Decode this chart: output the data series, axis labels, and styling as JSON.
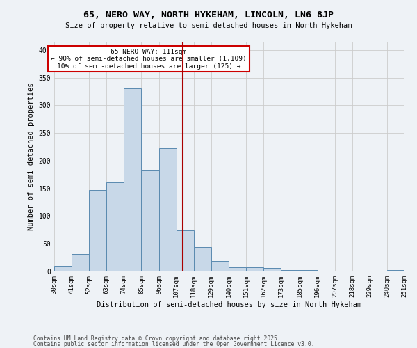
{
  "title": "65, NERO WAY, NORTH HYKEHAM, LINCOLN, LN6 8JP",
  "subtitle": "Size of property relative to semi-detached houses in North Hykeham",
  "xlabel": "Distribution of semi-detached houses by size in North Hykeham",
  "ylabel": "Number of semi-detached properties",
  "footnote1": "Contains HM Land Registry data © Crown copyright and database right 2025.",
  "footnote2": "Contains public sector information licensed under the Open Government Licence v3.0.",
  "annotation_title": "65 NERO WAY: 111sqm",
  "annotation_line1": "← 90% of semi-detached houses are smaller (1,109)",
  "annotation_line2": "10% of semi-detached houses are larger (125) →",
  "vline_x": 111,
  "bar_color": "#c8d8e8",
  "bar_edge_color": "#5a8ab0",
  "vline_color": "#aa0000",
  "grid_color": "#cccccc",
  "background_color": "#eef2f6",
  "bins": [
    30,
    41,
    52,
    63,
    74,
    85,
    96,
    107,
    118,
    129,
    140,
    151,
    162,
    173,
    185,
    196,
    207,
    218,
    229,
    240,
    251
  ],
  "counts": [
    10,
    32,
    147,
    161,
    331,
    184,
    223,
    74,
    44,
    19,
    8,
    8,
    6,
    3,
    3,
    0,
    0,
    0,
    0,
    2
  ],
  "tick_labels": [
    "30sqm",
    "41sqm",
    "52sqm",
    "63sqm",
    "74sqm",
    "85sqm",
    "96sqm",
    "107sqm",
    "118sqm",
    "129sqm",
    "140sqm",
    "151sqm",
    "162sqm",
    "173sqm",
    "185sqm",
    "196sqm",
    "207sqm",
    "218sqm",
    "229sqm",
    "240sqm",
    "251sqm"
  ],
  "yticks": [
    0,
    50,
    100,
    150,
    200,
    250,
    300,
    350,
    400
  ],
  "ylim": [
    0,
    415
  ]
}
